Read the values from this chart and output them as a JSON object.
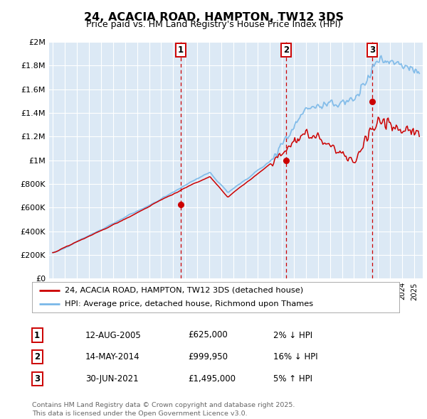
{
  "title": "24, ACACIA ROAD, HAMPTON, TW12 3DS",
  "subtitle": "Price paid vs. HM Land Registry's House Price Index (HPI)",
  "background_color": "#dce9f5",
  "ylabel_values": [
    "£0",
    "£200K",
    "£400K",
    "£600K",
    "£800K",
    "£1M",
    "£1.2M",
    "£1.4M",
    "£1.6M",
    "£1.8M",
    "£2M"
  ],
  "y_values": [
    0,
    200000,
    400000,
    600000,
    800000,
    1000000,
    1200000,
    1400000,
    1600000,
    1800000,
    2000000
  ],
  "hpi_color": "#7ab8e8",
  "price_color": "#cc0000",
  "vline_color": "#cc0000",
  "legend_line1": "24, ACACIA ROAD, HAMPTON, TW12 3DS (detached house)",
  "legend_line2": "HPI: Average price, detached house, Richmond upon Thames",
  "sale1_date": 2005.62,
  "sale1_price": 625000,
  "sale2_date": 2014.37,
  "sale2_price": 999950,
  "sale3_date": 2021.5,
  "sale3_price": 1495000,
  "table_rows": [
    [
      "1",
      "12-AUG-2005",
      "£625,000",
      "2% ↓ HPI"
    ],
    [
      "2",
      "14-MAY-2014",
      "£999,950",
      "16% ↓ HPI"
    ],
    [
      "3",
      "30-JUN-2021",
      "£1,495,000",
      "5% ↑ HPI"
    ]
  ],
  "footer": "Contains HM Land Registry data © Crown copyright and database right 2025.\nThis data is licensed under the Open Government Licence v3.0."
}
